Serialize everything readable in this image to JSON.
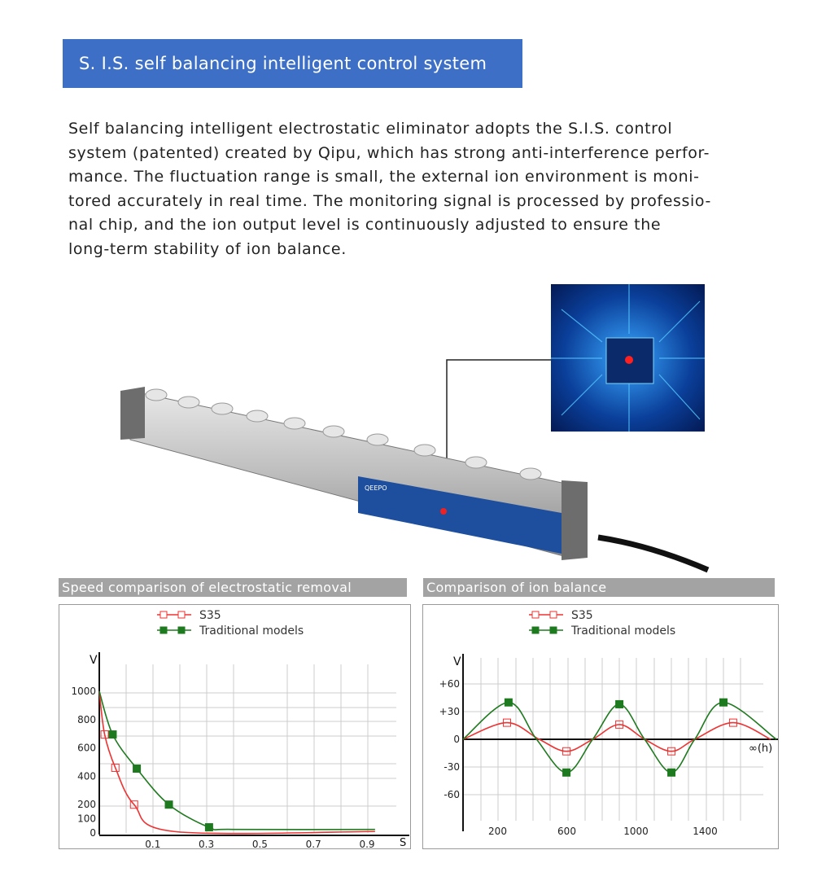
{
  "header": {
    "title": "S. I.S. self balancing intelligent control system"
  },
  "description": {
    "lines": [
      "Self balancing intelligent electrostatic eliminator adopts the S.I.S. control",
      "system (patented) created by Qipu, which has strong anti-interference perfor-",
      "mance. The fluctuation range is small, the external ion environment is moni-",
      "tored accurately in real time. The monitoring signal is processed by professio-",
      "nal chip, and the ion output level is continuously adjusted to ensure the",
      "long-term stability of ion balance."
    ]
  },
  "product": {
    "brand": "QEEPO",
    "image": "ionizing-bar-with-chip-callout"
  },
  "colors": {
    "header": "#3c6fc5",
    "s35": "#ee3333",
    "traditional": "#1e7a1e",
    "title_bar": "#a3a3a3"
  },
  "chart_data": [
    {
      "type": "line",
      "title": "Speed comparison of electrostatic removal",
      "xlabel": "S",
      "ylabel": "V",
      "xlim": [
        -0.1,
        1.0
      ],
      "ylim": [
        0,
        1000
      ],
      "xticks": [
        0.1,
        0.3,
        0.5,
        0.7,
        0.9
      ],
      "yticks": [
        0,
        100,
        200,
        400,
        600,
        800,
        1000
      ],
      "grid": true,
      "legend": "top-center",
      "series": [
        {
          "name": "S35",
          "marker": "open-square",
          "x": [
            -0.1,
            -0.08,
            -0.04,
            0.03,
            0.18,
            0.93
          ],
          "y": [
            1000,
            695,
            460,
            200,
            10,
            10
          ]
        },
        {
          "name": "Traditional models",
          "marker": "filled-square",
          "x": [
            -0.1,
            -0.05,
            0.04,
            0.16,
            0.31,
            0.4,
            0.93
          ],
          "y": [
            1000,
            695,
            454,
            200,
            40,
            25,
            25
          ]
        }
      ]
    },
    {
      "type": "line",
      "title": "Comparison of ion balance",
      "xlabel": "∞(h)",
      "ylabel": "V",
      "xlim": [
        0,
        1900
      ],
      "ylim": [
        -90,
        75
      ],
      "xticks": [
        200,
        600,
        1000,
        1400
      ],
      "yticks": [
        "+60",
        "+30",
        "0",
        "-30",
        "-60"
      ],
      "ytick_values": [
        60,
        30,
        0,
        -30,
        -60
      ],
      "grid": true,
      "legend": "top-center",
      "series": [
        {
          "name": "S35",
          "marker": "open-square",
          "x": [
            0,
            254,
            440,
            598,
            750,
            904,
            1050,
            1205,
            1340,
            1562,
            1779
          ],
          "y": [
            0,
            18,
            0,
            -13,
            0,
            16,
            0,
            -13,
            0,
            18,
            0
          ]
        },
        {
          "name": "Traditional models",
          "marker": "filled-square",
          "x": [
            0,
            263,
            425,
            598,
            750,
            904,
            1050,
            1205,
            1340,
            1506,
            1812
          ],
          "y": [
            0,
            40,
            0,
            -36,
            0,
            38,
            0,
            -36,
            0,
            40,
            0
          ]
        }
      ]
    }
  ]
}
